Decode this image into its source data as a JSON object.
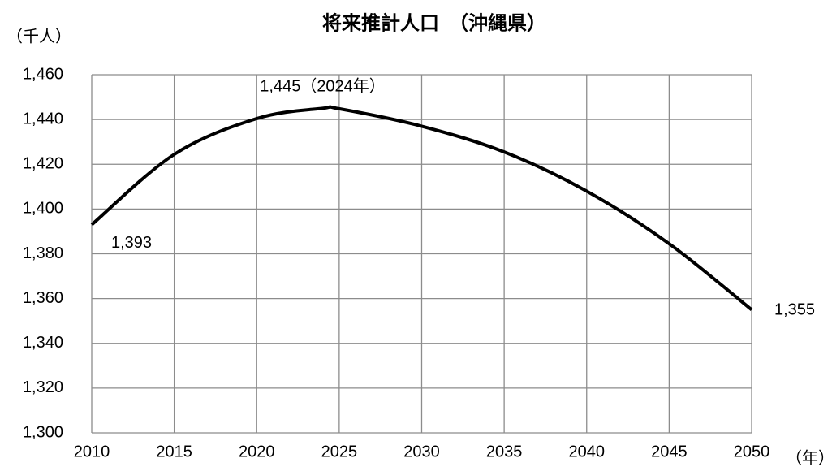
{
  "chart_data": {
    "type": "line",
    "title": "将来推計人口　（沖縄県）",
    "y_label": "（千人）",
    "x_label": "（年）",
    "x": [
      2010,
      2015,
      2020,
      2024,
      2025,
      2030,
      2035,
      2040,
      2045,
      2050
    ],
    "series": [
      {
        "name": "将来推計人口",
        "color": "#000000",
        "values": [
          1393,
          1424.4,
          1440.4,
          1445,
          1444.8,
          1437,
          1425.5,
          1408,
          1384.5,
          1355
        ],
        "value_labels": [
          "1,393",
          null,
          null,
          "1,445（2024年）",
          null,
          null,
          null,
          null,
          null,
          "1,355"
        ]
      }
    ],
    "xlim": [
      2010,
      2050
    ],
    "xticks": [
      2010,
      2015,
      2020,
      2025,
      2030,
      2035,
      2040,
      2045,
      2050
    ],
    "ylim": [
      1300,
      1460
    ],
    "yticks": [
      {
        "value": 1300,
        "label": "1,300"
      },
      {
        "value": 1320,
        "label": "1,320"
      },
      {
        "value": 1340,
        "label": "1,340"
      },
      {
        "value": 1360,
        "label": "1,360"
      },
      {
        "value": 1380,
        "label": "1,380"
      },
      {
        "value": 1400,
        "label": "1,400"
      },
      {
        "value": 1420,
        "label": "1,420"
      },
      {
        "value": 1440,
        "label": "1,440"
      },
      {
        "value": 1460,
        "label": "1,460"
      }
    ],
    "grid": true
  }
}
